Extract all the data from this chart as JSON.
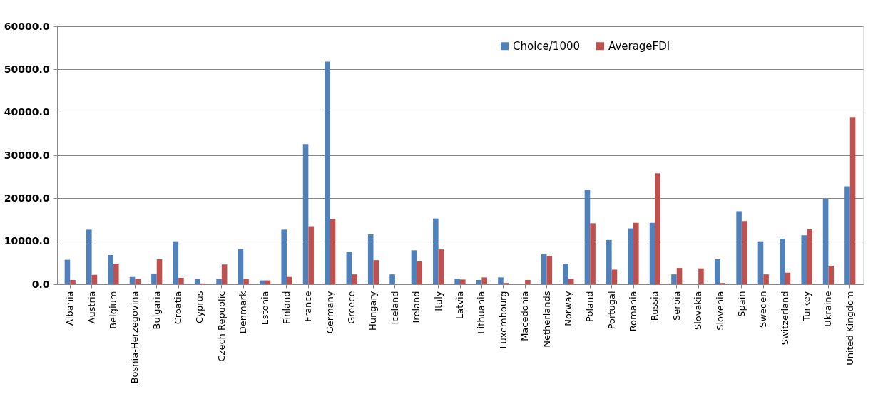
{
  "chart_data": {
    "type": "bar",
    "categories": [
      "Albania",
      "Austria",
      "Belgium",
      "Bosnia-Herzegovina",
      "Bulgaria",
      "Croatia",
      "Cyprus",
      "Czech Republic",
      "Denmark",
      "Estonia",
      "Finland",
      "France",
      "Germany",
      "Greece",
      "Hungary",
      "Iceland",
      "Ireland",
      "Italy",
      "Latvia",
      "Lithuania",
      "Luxembourg",
      "Macedonia",
      "Netherlands",
      "Norway",
      "Poland",
      "Portugal",
      "Romania",
      "Russia",
      "Serbia",
      "Slovakia",
      "Slovenia",
      "Spain",
      "Sweden",
      "Switzerland",
      "Turkey",
      "Ukraine",
      "United Kingdom"
    ],
    "series": [
      {
        "name": "Choice/1000",
        "color": "#4f81bd",
        "values": [
          5700,
          12700,
          6800,
          1700,
          2500,
          10000,
          1200,
          1200,
          8200,
          900,
          12700,
          32600,
          51800,
          7600,
          11600,
          2300,
          7900,
          15300,
          1300,
          1000,
          1600,
          0,
          7000,
          4800,
          22000,
          10300,
          13000,
          14300,
          2300,
          0,
          5800,
          17000,
          10000,
          10600,
          11400,
          19900,
          22800
        ]
      },
      {
        "name": "AverageFDI",
        "color": "#c0504d",
        "values": [
          1000,
          2200,
          4800,
          1200,
          5800,
          1500,
          200,
          4600,
          1200,
          900,
          1700,
          13500,
          15200,
          2300,
          5600,
          0,
          5300,
          8100,
          1100,
          1600,
          300,
          1000,
          6600,
          1300,
          14200,
          3400,
          14300,
          25800,
          3800,
          3700,
          300,
          14700,
          2300,
          2700,
          12800,
          4300,
          38900
        ]
      }
    ],
    "ylim": [
      0,
      60000
    ],
    "yticks": [
      {
        "value": 0,
        "label": "0.0"
      },
      {
        "value": 10000,
        "label": "10000.0"
      },
      {
        "value": 20000,
        "label": "20000.0"
      },
      {
        "value": 30000,
        "label": "30000.0"
      },
      {
        "value": 40000,
        "label": "40000.0"
      },
      {
        "value": 50000,
        "label": "50000.0"
      },
      {
        "value": 60000,
        "label": "60000.0"
      }
    ],
    "grid": "y",
    "legend": "top right"
  }
}
